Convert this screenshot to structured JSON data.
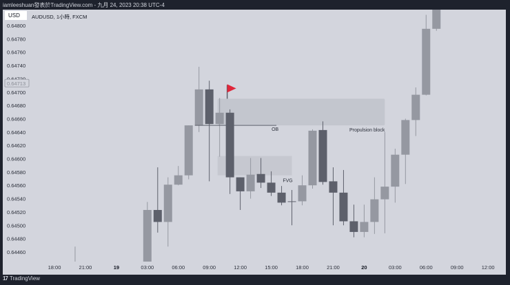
{
  "topbar": {
    "text": "iamleeshuan發表於TradingView.com - 九月 24, 2023 20:38 UTC-4"
  },
  "chart_header": {
    "currency": "USD",
    "symbol": "AUDUSD, 1小時, FXCM"
  },
  "footer": {
    "logo_mark": "17",
    "brand": "TradingView"
  },
  "colors": {
    "up": "#9598a1",
    "down": "#5d606b",
    "background": "#d3d5dd",
    "zone": "#c3c6ce",
    "flag": "#e0263a"
  },
  "chart_data": {
    "type": "candlestick",
    "ylim": [
      0.6444,
      0.64836
    ],
    "y_ticks": [
      "0.64800",
      "0.64780",
      "0.64760",
      "0.64740",
      "0.64720",
      "0.64700",
      "0.64680",
      "0.64660",
      "0.64640",
      "0.64620",
      "0.64600",
      "0.64580",
      "0.64560",
      "0.64540",
      "0.64520",
      "0.64500",
      "0.64480",
      "0.64460"
    ],
    "current_price_label": "0.64713",
    "x_ticks": [
      {
        "t": "18 18:00",
        "label": "18:00",
        "bold": false
      },
      {
        "t": "18 21:00",
        "label": "21:00",
        "bold": false
      },
      {
        "t": "19 00:00",
        "label": "19",
        "bold": true
      },
      {
        "t": "19 03:00",
        "label": "03:00",
        "bold": false
      },
      {
        "t": "19 06:00",
        "label": "06:00",
        "bold": false
      },
      {
        "t": "19 09:00",
        "label": "09:00",
        "bold": false
      },
      {
        "t": "19 12:00",
        "label": "12:00",
        "bold": false
      },
      {
        "t": "19 15:00",
        "label": "15:00",
        "bold": false
      },
      {
        "t": "19 18:00",
        "label": "18:00",
        "bold": false
      },
      {
        "t": "19 21:00",
        "label": "21:00",
        "bold": false
      },
      {
        "t": "20 00:00",
        "label": "20",
        "bold": true
      },
      {
        "t": "20 03:00",
        "label": "03:00",
        "bold": false
      },
      {
        "t": "20 06:00",
        "label": "06:00",
        "bold": false
      },
      {
        "t": "20 09:00",
        "label": "09:00",
        "bold": false
      },
      {
        "t": "20 12:00",
        "label": "12:00",
        "bold": false
      }
    ],
    "candles": [
      {
        "t": "18 20:00",
        "o": 0.6443,
        "h": 0.64468,
        "l": 0.6442,
        "c": 0.64435
      },
      {
        "t": "19 03:00",
        "o": 0.6443,
        "h": 0.64535,
        "l": 0.6442,
        "c": 0.64523
      },
      {
        "t": "19 04:00",
        "o": 0.64523,
        "h": 0.64587,
        "l": 0.64489,
        "c": 0.64505
      },
      {
        "t": "19 05:00",
        "o": 0.64505,
        "h": 0.64572,
        "l": 0.64468,
        "c": 0.64561
      },
      {
        "t": "19 06:00",
        "o": 0.64561,
        "h": 0.64589,
        "l": 0.6456,
        "c": 0.64575
      },
      {
        "t": "19 07:00",
        "o": 0.64575,
        "h": 0.6465,
        "l": 0.64569,
        "c": 0.6465
      },
      {
        "t": "19 08:00",
        "o": 0.6465,
        "h": 0.64738,
        "l": 0.6464,
        "c": 0.64704
      },
      {
        "t": "19 09:00",
        "o": 0.64704,
        "h": 0.64717,
        "l": 0.64566,
        "c": 0.64652
      },
      {
        "t": "19 10:00",
        "o": 0.64652,
        "h": 0.64691,
        "l": 0.64603,
        "c": 0.64669
      },
      {
        "t": "19 11:00",
        "o": 0.64669,
        "h": 0.64674,
        "l": 0.64547,
        "c": 0.64572
      },
      {
        "t": "19 12:00",
        "o": 0.64572,
        "h": 0.64572,
        "l": 0.64523,
        "c": 0.64551
      },
      {
        "t": "19 13:00",
        "o": 0.64551,
        "h": 0.64601,
        "l": 0.6454,
        "c": 0.64576
      },
      {
        "t": "19 14:00",
        "o": 0.64577,
        "h": 0.64601,
        "l": 0.64556,
        "c": 0.64564
      },
      {
        "t": "19 15:00",
        "o": 0.64564,
        "h": 0.64581,
        "l": 0.64544,
        "c": 0.64549
      },
      {
        "t": "19 16:00",
        "o": 0.64549,
        "h": 0.64559,
        "l": 0.6453,
        "c": 0.64534
      },
      {
        "t": "19 17:00",
        "o": 0.64536,
        "h": 0.64553,
        "l": 0.645,
        "c": 0.64535
      },
      {
        "t": "19 18:00",
        "o": 0.64536,
        "h": 0.64575,
        "l": 0.6453,
        "c": 0.6456
      },
      {
        "t": "19 19:00",
        "o": 0.6456,
        "h": 0.64644,
        "l": 0.64555,
        "c": 0.64642
      },
      {
        "t": "19 20:00",
        "o": 0.64643,
        "h": 0.64656,
        "l": 0.64561,
        "c": 0.64565
      },
      {
        "t": "19 21:00",
        "o": 0.64566,
        "h": 0.64587,
        "l": 0.645,
        "c": 0.64549
      },
      {
        "t": "19 22:00",
        "o": 0.64549,
        "h": 0.64583,
        "l": 0.645,
        "c": 0.64506
      },
      {
        "t": "19 23:00",
        "o": 0.64506,
        "h": 0.64531,
        "l": 0.64482,
        "c": 0.6449
      },
      {
        "t": "20 00:00",
        "o": 0.6449,
        "h": 0.64531,
        "l": 0.64482,
        "c": 0.64505
      },
      {
        "t": "20 01:00",
        "o": 0.64505,
        "h": 0.64572,
        "l": 0.64487,
        "c": 0.64539
      },
      {
        "t": "20 02:00",
        "o": 0.64539,
        "h": 0.6464,
        "l": 0.64488,
        "c": 0.64558
      },
      {
        "t": "20 03:00",
        "o": 0.64558,
        "h": 0.64615,
        "l": 0.64534,
        "c": 0.64606
      },
      {
        "t": "20 04:00",
        "o": 0.64606,
        "h": 0.6466,
        "l": 0.64562,
        "c": 0.64658
      },
      {
        "t": "20 05:00",
        "o": 0.64658,
        "h": 0.64707,
        "l": 0.64634,
        "c": 0.64696
      },
      {
        "t": "20 06:00",
        "o": 0.64696,
        "h": 0.64816,
        "l": 0.64695,
        "c": 0.64795
      },
      {
        "t": "20 07:00",
        "o": 0.64795,
        "h": 0.6484,
        "l": 0.64792,
        "c": 0.6483
      }
    ],
    "annotations": {
      "ob_zone": {
        "t0": "19 10:00",
        "t1": "20 02:00",
        "top": 0.6469,
        "bottom": 0.6465,
        "label": "Propulsion block"
      },
      "ob_line": {
        "t0": "19 08:00",
        "t1": "19 15:30",
        "price": 0.6465,
        "label": "OB"
      },
      "fvg_zone": {
        "t0": "19 10:00",
        "t1": "19 17:00",
        "top": 0.64604,
        "bottom": 0.64575,
        "label": "FVG"
      },
      "flag": {
        "t": "19 11:00",
        "price": 0.6469
      }
    }
  }
}
